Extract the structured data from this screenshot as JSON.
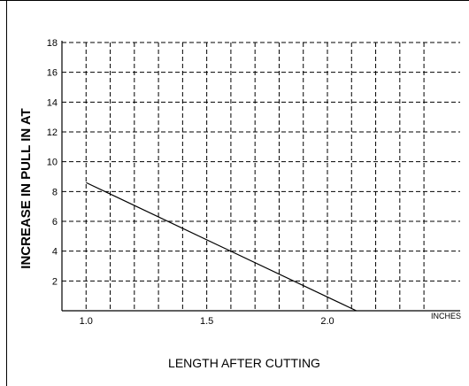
{
  "chart_data": {
    "type": "line",
    "title": "",
    "xlabel": "LENGTH AFTER CUTTING",
    "ylabel": "INCREASE IN PULL IN AT",
    "x_unit": "INCHES",
    "xlim": [
      0.9,
      2.55
    ],
    "ylim": [
      0,
      18
    ],
    "x_ticks": [
      1.0,
      1.5,
      2.0
    ],
    "x_tick_labels": [
      "1.0",
      "1.5",
      "2.0"
    ],
    "x_grid": [
      0.9,
      1.0,
      1.1,
      1.2,
      1.3,
      1.4,
      1.5,
      1.6,
      1.7,
      1.8,
      1.9,
      2.0,
      2.1,
      2.2,
      2.3,
      2.4
    ],
    "y_ticks": [
      2,
      4,
      6,
      8,
      10,
      12,
      14,
      16,
      18
    ],
    "y_tick_labels": [
      "2",
      "4",
      "6",
      "8",
      "10",
      "12",
      "14",
      "16",
      "18"
    ],
    "grid": true,
    "grid_style": "dashed",
    "series": [
      {
        "x": [
          1.0,
          2.12
        ],
        "y": [
          8.6,
          0
        ],
        "color": "#000000"
      }
    ]
  }
}
